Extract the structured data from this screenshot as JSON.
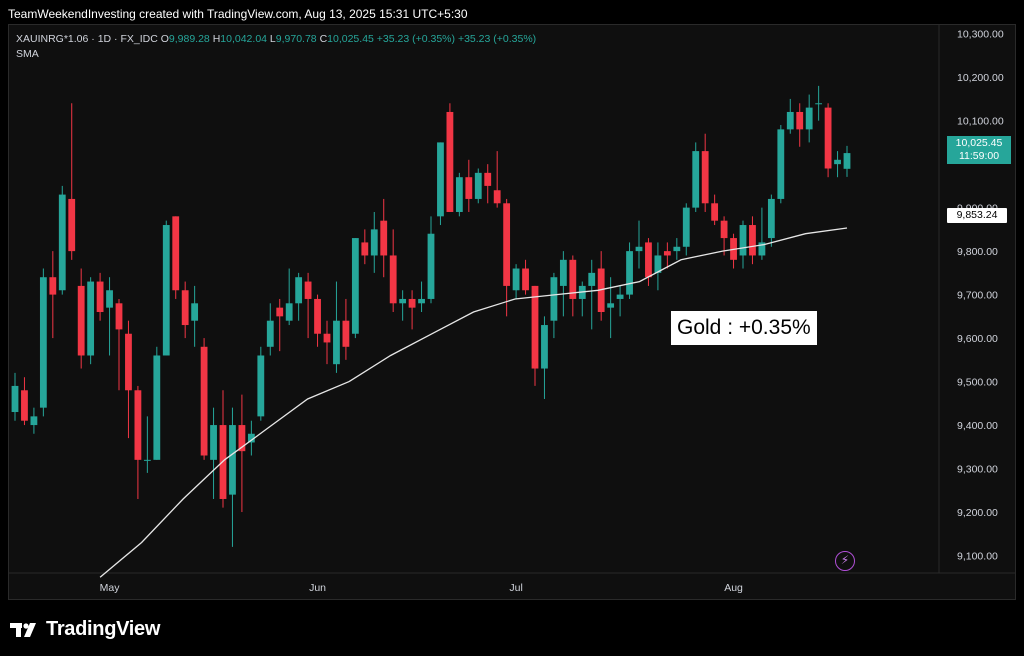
{
  "header": {
    "caption": "TeamWeekendInvesting created with TradingView.com, Aug 13, 2025 15:31 UTC+5:30"
  },
  "legend": {
    "symbol": "XAUINRG*1.06 · 1D · FX_IDC",
    "open_label": "O",
    "open": "9,989.28",
    "high_label": "H",
    "high": "10,042.04",
    "low_label": "L",
    "low": "9,970.78",
    "close_label": "C",
    "close": "10,025.45",
    "change": "+35.23 (+0.35%)",
    "change2": "+35.23 (+0.35%)",
    "indicator": "SMA"
  },
  "price_tag": {
    "value": "10,025.45",
    "countdown": "11:59:00"
  },
  "sma_tag": {
    "value": "9,853.24"
  },
  "annotation": {
    "text": "Gold : +0.35%"
  },
  "footer": {
    "brand": "TradingView"
  },
  "colors": {
    "up": "#26a69a",
    "down": "#f23645",
    "sma": "#e6e6e6",
    "background": "#0f0f0f"
  },
  "icons": {
    "bolt": "lightning-bolt-icon"
  },
  "chart_data": {
    "type": "candlestick",
    "y_axis": {
      "ticks": [
        "10,300.00",
        "10,200.00",
        "10,100.00",
        "9,900.00",
        "9,800.00",
        "9,700.00",
        "9,600.00",
        "9,500.00",
        "9,400.00",
        "9,300.00",
        "9,200.00",
        "9,100.00"
      ],
      "tick_values": [
        10300,
        10200,
        10100,
        9900,
        9800,
        9700,
        9600,
        9500,
        9400,
        9300,
        9200,
        9100
      ],
      "range": [
        9000,
        10320
      ]
    },
    "x_axis": {
      "labels": [
        "May",
        "Jun",
        "Jul",
        "Aug"
      ],
      "label_at": [
        "2025-05-01",
        "2025-06-02",
        "2025-07-01",
        "2025-08-01"
      ]
    },
    "candles": [
      {
        "d": "2025-04-17",
        "o": 9430,
        "h": 9520,
        "l": 9410,
        "c": 9490
      },
      {
        "d": "2025-04-18",
        "o": 9480,
        "h": 9510,
        "l": 9400,
        "c": 9410
      },
      {
        "d": "2025-04-21",
        "o": 9400,
        "h": 9440,
        "l": 9380,
        "c": 9420
      },
      {
        "d": "2025-04-22",
        "o": 9440,
        "h": 9760,
        "l": 9420,
        "c": 9740
      },
      {
        "d": "2025-04-23",
        "o": 9740,
        "h": 9800,
        "l": 9600,
        "c": 9700
      },
      {
        "d": "2025-04-24",
        "o": 9710,
        "h": 9950,
        "l": 9700,
        "c": 9930
      },
      {
        "d": "2025-04-25",
        "o": 9920,
        "h": 10140,
        "l": 9780,
        "c": 9800
      },
      {
        "d": "2025-04-28",
        "o": 9720,
        "h": 9760,
        "l": 9530,
        "c": 9560
      },
      {
        "d": "2025-04-29",
        "o": 9560,
        "h": 9740,
        "l": 9540,
        "c": 9730
      },
      {
        "d": "2025-04-30",
        "o": 9730,
        "h": 9750,
        "l": 9640,
        "c": 9660
      },
      {
        "d": "2025-05-01",
        "o": 9670,
        "h": 9740,
        "l": 9560,
        "c": 9710
      },
      {
        "d": "2025-05-02",
        "o": 9680,
        "h": 9690,
        "l": 9480,
        "c": 9620
      },
      {
        "d": "2025-05-05",
        "o": 9610,
        "h": 9640,
        "l": 9370,
        "c": 9480
      },
      {
        "d": "2025-05-06",
        "o": 9480,
        "h": 9490,
        "l": 9230,
        "c": 9320
      },
      {
        "d": "2025-05-07",
        "o": 9320,
        "h": 9420,
        "l": 9290,
        "c": 9320
      },
      {
        "d": "2025-05-08",
        "o": 9320,
        "h": 9580,
        "l": 9320,
        "c": 9560
      },
      {
        "d": "2025-05-09",
        "o": 9560,
        "h": 9870,
        "l": 9560,
        "c": 9860
      },
      {
        "d": "2025-05-12",
        "o": 9880,
        "h": 9880,
        "l": 9690,
        "c": 9710
      },
      {
        "d": "2025-05-13",
        "o": 9710,
        "h": 9730,
        "l": 9600,
        "c": 9630
      },
      {
        "d": "2025-05-14",
        "o": 9640,
        "h": 9720,
        "l": 9580,
        "c": 9680
      },
      {
        "d": "2025-05-15",
        "o": 9580,
        "h": 9600,
        "l": 9320,
        "c": 9330
      },
      {
        "d": "2025-05-16",
        "o": 9320,
        "h": 9440,
        "l": 9230,
        "c": 9400
      },
      {
        "d": "2025-05-19",
        "o": 9400,
        "h": 9480,
        "l": 9210,
        "c": 9230
      },
      {
        "d": "2025-05-20",
        "o": 9240,
        "h": 9440,
        "l": 9120,
        "c": 9400
      },
      {
        "d": "2025-05-21",
        "o": 9400,
        "h": 9470,
        "l": 9200,
        "c": 9340
      },
      {
        "d": "2025-05-22",
        "o": 9360,
        "h": 9410,
        "l": 9330,
        "c": 9380
      },
      {
        "d": "2025-05-23",
        "o": 9420,
        "h": 9580,
        "l": 9410,
        "c": 9560
      },
      {
        "d": "2025-05-26",
        "o": 9580,
        "h": 9680,
        "l": 9560,
        "c": 9640
      },
      {
        "d": "2025-05-27",
        "o": 9670,
        "h": 9690,
        "l": 9570,
        "c": 9650
      },
      {
        "d": "2025-05-28",
        "o": 9640,
        "h": 9760,
        "l": 9630,
        "c": 9680
      },
      {
        "d": "2025-05-29",
        "o": 9680,
        "h": 9750,
        "l": 9640,
        "c": 9740
      },
      {
        "d": "2025-05-30",
        "o": 9730,
        "h": 9750,
        "l": 9600,
        "c": 9690
      },
      {
        "d": "2025-06-02",
        "o": 9690,
        "h": 9700,
        "l": 9580,
        "c": 9610
      },
      {
        "d": "2025-06-03",
        "o": 9610,
        "h": 9640,
        "l": 9540,
        "c": 9590
      },
      {
        "d": "2025-06-04",
        "o": 9540,
        "h": 9730,
        "l": 9520,
        "c": 9640
      },
      {
        "d": "2025-06-05",
        "o": 9640,
        "h": 9690,
        "l": 9550,
        "c": 9580
      },
      {
        "d": "2025-06-06",
        "o": 9610,
        "h": 9830,
        "l": 9600,
        "c": 9830
      },
      {
        "d": "2025-06-09",
        "o": 9820,
        "h": 9850,
        "l": 9770,
        "c": 9790
      },
      {
        "d": "2025-06-10",
        "o": 9790,
        "h": 9890,
        "l": 9750,
        "c": 9850
      },
      {
        "d": "2025-06-11",
        "o": 9870,
        "h": 9920,
        "l": 9740,
        "c": 9790
      },
      {
        "d": "2025-06-12",
        "o": 9790,
        "h": 9850,
        "l": 9660,
        "c": 9680
      },
      {
        "d": "2025-06-13",
        "o": 9680,
        "h": 9710,
        "l": 9640,
        "c": 9690
      },
      {
        "d": "2025-06-16",
        "o": 9690,
        "h": 9710,
        "l": 9620,
        "c": 9670
      },
      {
        "d": "2025-06-17",
        "o": 9680,
        "h": 9730,
        "l": 9660,
        "c": 9690
      },
      {
        "d": "2025-06-18",
        "o": 9690,
        "h": 9880,
        "l": 9680,
        "c": 9840
      },
      {
        "d": "2025-06-19",
        "o": 9880,
        "h": 10050,
        "l": 9860,
        "c": 10050
      },
      {
        "d": "2025-06-20",
        "o": 10120,
        "h": 10140,
        "l": 9890,
        "c": 9890
      },
      {
        "d": "2025-06-23",
        "o": 9890,
        "h": 9980,
        "l": 9880,
        "c": 9970
      },
      {
        "d": "2025-06-24",
        "o": 9970,
        "h": 10010,
        "l": 9890,
        "c": 9920
      },
      {
        "d": "2025-06-25",
        "o": 9920,
        "h": 9990,
        "l": 9910,
        "c": 9980
      },
      {
        "d": "2025-06-26",
        "o": 9980,
        "h": 10000,
        "l": 9910,
        "c": 9950
      },
      {
        "d": "2025-06-27",
        "o": 9940,
        "h": 10030,
        "l": 9900,
        "c": 9910
      },
      {
        "d": "2025-06-30",
        "o": 9910,
        "h": 9920,
        "l": 9650,
        "c": 9720
      },
      {
        "d": "2025-07-01",
        "o": 9710,
        "h": 9770,
        "l": 9690,
        "c": 9760
      },
      {
        "d": "2025-07-02",
        "o": 9760,
        "h": 9780,
        "l": 9700,
        "c": 9710
      },
      {
        "d": "2025-07-03",
        "o": 9720,
        "h": 9720,
        "l": 9490,
        "c": 9530
      },
      {
        "d": "2025-07-04",
        "o": 9530,
        "h": 9650,
        "l": 9460,
        "c": 9630
      },
      {
        "d": "2025-07-07",
        "o": 9640,
        "h": 9750,
        "l": 9600,
        "c": 9740
      },
      {
        "d": "2025-07-08",
        "o": 9720,
        "h": 9800,
        "l": 9650,
        "c": 9780
      },
      {
        "d": "2025-07-09",
        "o": 9780,
        "h": 9790,
        "l": 9650,
        "c": 9690
      },
      {
        "d": "2025-07-10",
        "o": 9690,
        "h": 9730,
        "l": 9650,
        "c": 9720
      },
      {
        "d": "2025-07-11",
        "o": 9720,
        "h": 9780,
        "l": 9620,
        "c": 9750
      },
      {
        "d": "2025-07-14",
        "o": 9760,
        "h": 9800,
        "l": 9640,
        "c": 9660
      },
      {
        "d": "2025-07-15",
        "o": 9670,
        "h": 9740,
        "l": 9600,
        "c": 9680
      },
      {
        "d": "2025-07-16",
        "o": 9690,
        "h": 9720,
        "l": 9650,
        "c": 9700
      },
      {
        "d": "2025-07-17",
        "o": 9700,
        "h": 9820,
        "l": 9690,
        "c": 9800
      },
      {
        "d": "2025-07-18",
        "o": 9800,
        "h": 9870,
        "l": 9760,
        "c": 9810
      },
      {
        "d": "2025-07-21",
        "o": 9820,
        "h": 9830,
        "l": 9720,
        "c": 9740
      },
      {
        "d": "2025-07-22",
        "o": 9750,
        "h": 9820,
        "l": 9710,
        "c": 9790
      },
      {
        "d": "2025-07-23",
        "o": 9800,
        "h": 9820,
        "l": 9760,
        "c": 9790
      },
      {
        "d": "2025-07-24",
        "o": 9800,
        "h": 9830,
        "l": 9780,
        "c": 9810
      },
      {
        "d": "2025-07-25",
        "o": 9810,
        "h": 9910,
        "l": 9790,
        "c": 9900
      },
      {
        "d": "2025-07-28",
        "o": 9900,
        "h": 10050,
        "l": 9890,
        "c": 10030
      },
      {
        "d": "2025-07-29",
        "o": 10030,
        "h": 10070,
        "l": 9890,
        "c": 9910
      },
      {
        "d": "2025-07-30",
        "o": 9910,
        "h": 9930,
        "l": 9860,
        "c": 9870
      },
      {
        "d": "2025-07-31",
        "o": 9870,
        "h": 9880,
        "l": 9790,
        "c": 9830
      },
      {
        "d": "2025-08-01",
        "o": 9830,
        "h": 9840,
        "l": 9760,
        "c": 9780
      },
      {
        "d": "2025-08-04",
        "o": 9790,
        "h": 9870,
        "l": 9760,
        "c": 9860
      },
      {
        "d": "2025-08-05",
        "o": 9860,
        "h": 9880,
        "l": 9770,
        "c": 9790
      },
      {
        "d": "2025-08-06",
        "o": 9790,
        "h": 9900,
        "l": 9780,
        "c": 9820
      },
      {
        "d": "2025-08-07",
        "o": 9830,
        "h": 9930,
        "l": 9810,
        "c": 9920
      },
      {
        "d": "2025-08-08",
        "o": 9920,
        "h": 10090,
        "l": 9910,
        "c": 10080
      },
      {
        "d": "2025-08-11",
        "o": 10080,
        "h": 10150,
        "l": 10070,
        "c": 10120
      },
      {
        "d": "2025-08-12",
        "o": 10120,
        "h": 10140,
        "l": 10040,
        "c": 10080
      },
      {
        "d": "2025-08-13",
        "o": 10080,
        "h": 10160,
        "l": 10050,
        "c": 10130
      },
      {
        "d": "2025-08-14",
        "o": 10140,
        "h": 10180,
        "l": 10100,
        "c": 10140
      },
      {
        "d": "2025-08-15",
        "o": 10130,
        "h": 10140,
        "l": 9970,
        "c": 9990
      },
      {
        "d": "2025-08-18",
        "o": 10000,
        "h": 10030,
        "l": 9970,
        "c": 10010
      },
      {
        "d": "2025-08-19",
        "o": 9989.28,
        "h": 10042.04,
        "l": 9970.78,
        "c": 10025.45
      }
    ],
    "sma_series": [
      9050,
      9130,
      9230,
      9320,
      9390,
      9460,
      9500,
      9560,
      9610,
      9660,
      9690,
      9700,
      9710,
      9730,
      9780,
      9800,
      9815,
      9840,
      9853.24
    ]
  }
}
